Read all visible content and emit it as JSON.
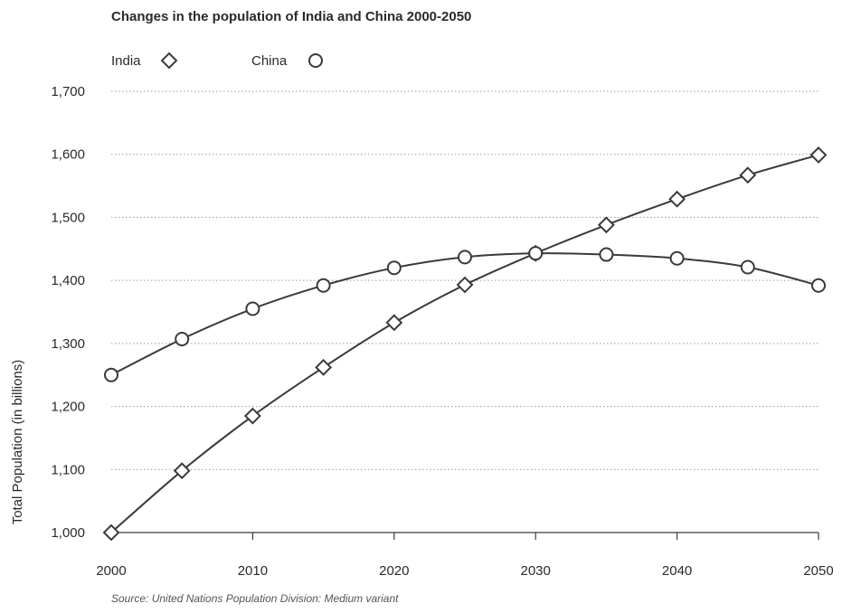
{
  "chart_data": {
    "type": "line",
    "title": "Changes in the population of India and China 2000-2050",
    "ylabel": "Total Population (in billions)",
    "xlabel": "",
    "source": "Source: United Nations Population Division: Medium variant",
    "x": [
      2000,
      2005,
      2010,
      2015,
      2020,
      2025,
      2030,
      2035,
      2040,
      2045,
      2050
    ],
    "xticks": [
      2000,
      2010,
      2020,
      2030,
      2040,
      2050
    ],
    "xtick_labels": [
      "2000",
      "2010",
      "2020",
      "2030",
      "2040",
      "2050"
    ],
    "yticks": [
      1000,
      1100,
      1200,
      1300,
      1400,
      1500,
      1600,
      1700
    ],
    "ytick_labels": [
      "1,000",
      "1,100",
      "1,200",
      "1,300",
      "1,400",
      "1,500",
      "1,600",
      "1,700"
    ],
    "xlim": [
      2000,
      2050
    ],
    "ylim": [
      1000,
      1700
    ],
    "grid": "horizontal dotted",
    "legend_position": "top-left",
    "series": [
      {
        "name": "India",
        "marker": "diamond",
        "color": "#3a3a3a",
        "values": [
          1000,
          1098,
          1185,
          1262,
          1333,
          1393,
          1443,
          1488,
          1529,
          1567,
          1599
        ]
      },
      {
        "name": "China",
        "marker": "circle",
        "color": "#3a3a3a",
        "values": [
          1250,
          1307,
          1355,
          1392,
          1420,
          1437,
          1443,
          1441,
          1435,
          1421,
          1392
        ]
      }
    ]
  }
}
